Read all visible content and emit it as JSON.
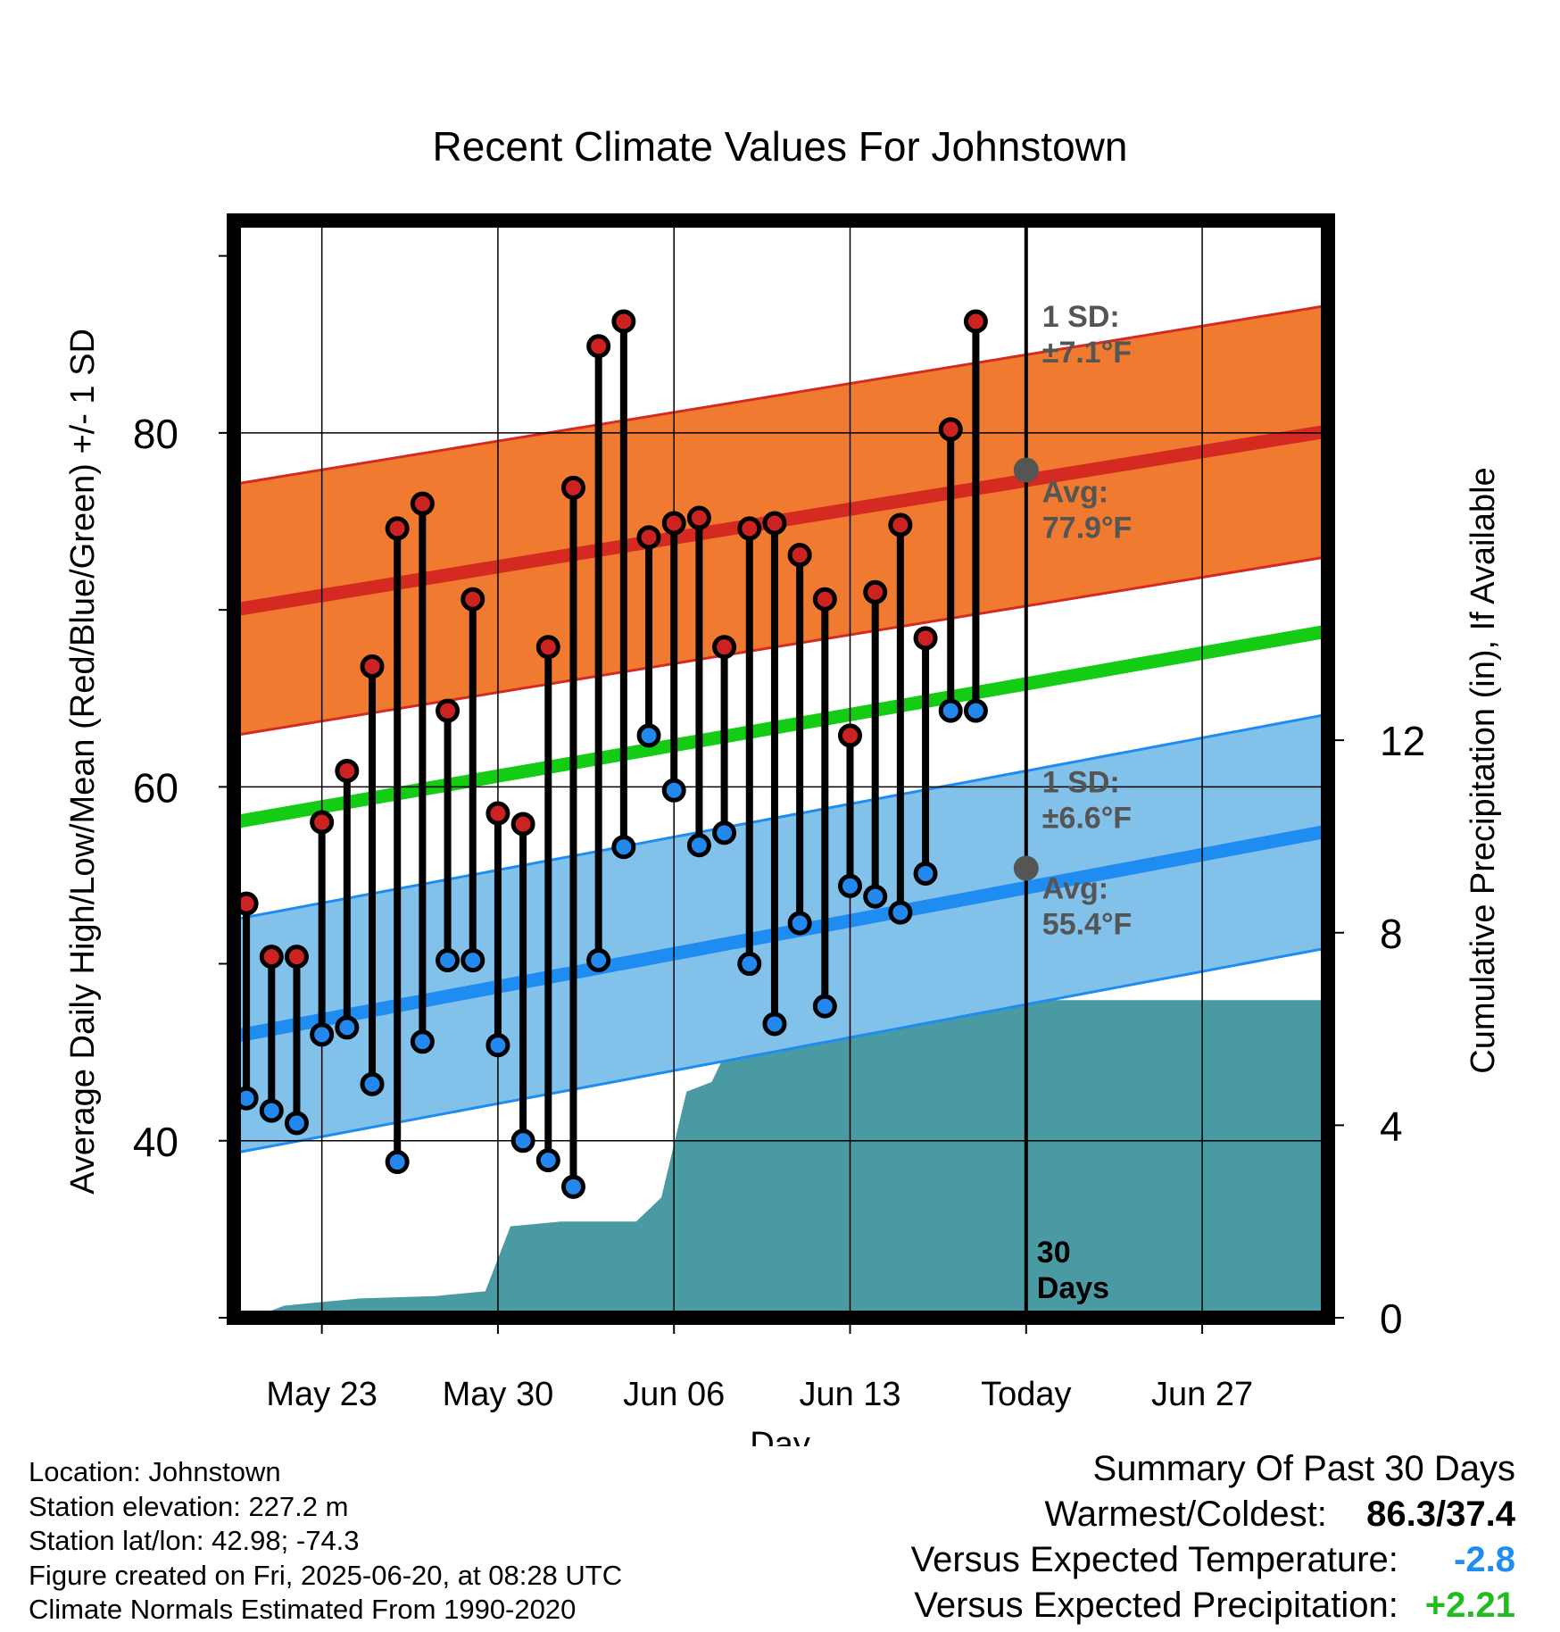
{
  "chart_data": {
    "type": "line",
    "title": "Recent Climate Values For Johnstown",
    "xlabel": "Day",
    "ylabel": "Average Daily High/Low/Mean (Red/Blue/Green) +/- 1 SD",
    "y2label": "Cumulative Precipitation (in), If Available",
    "ylim": [
      30,
      92
    ],
    "y2lim": [
      0,
      22.8
    ],
    "x_range_days": [
      -29.5,
      14.0
    ],
    "x_ticks": [
      {
        "day": -26,
        "label": "May 23"
      },
      {
        "day": -19,
        "label": "May 30"
      },
      {
        "day": -12,
        "label": "Jun 06"
      },
      {
        "day": -5,
        "label": "Jun 13"
      },
      {
        "day": 2,
        "label": "Today"
      },
      {
        "day": 9,
        "label": "Jun 27"
      }
    ],
    "y_ticks_labeled": [
      40,
      60,
      80
    ],
    "y_ticks_minor": [
      30,
      50,
      70,
      90
    ],
    "y2_ticks": [
      0,
      4,
      8,
      12
    ],
    "today_day": 2,
    "today_label_line1": "30",
    "today_label_line2": "Days",
    "days": [
      -29,
      -28,
      -27,
      -26,
      -25,
      -24,
      -23,
      -22,
      -21,
      -20,
      -19,
      -18,
      -17,
      -16,
      -15,
      -14,
      -13,
      -12,
      -11,
      -10,
      -9,
      -8,
      -7,
      -6,
      -5,
      -4,
      -3,
      -2,
      -1,
      0,
      1
    ],
    "highs": [
      53.4,
      50.4,
      50.4,
      58.0,
      60.9,
      66.8,
      74.6,
      76.0,
      64.3,
      70.6,
      58.5,
      57.9,
      67.9,
      76.9,
      84.9,
      86.3,
      74.1,
      74.9,
      75.2,
      67.9,
      74.6,
      74.9,
      73.1,
      70.6,
      62.9,
      71.0,
      74.8,
      68.4,
      80.2,
      86.3,
      null
    ],
    "lows": [
      42.4,
      41.7,
      41.0,
      46.0,
      46.4,
      43.2,
      38.8,
      45.6,
      50.2,
      50.2,
      45.4,
      40.0,
      38.9,
      37.4,
      50.2,
      56.6,
      62.9,
      59.8,
      56.7,
      57.4,
      50.0,
      46.6,
      52.3,
      47.6,
      54.4,
      53.8,
      52.9,
      55.1,
      64.3,
      64.3,
      null
    ],
    "normal_high": {
      "start": 70.0,
      "end": 80.1,
      "sd": 7.1
    },
    "normal_low": {
      "start": 45.9,
      "end": 57.5,
      "sd": 6.6
    },
    "normal_mean": {
      "start": 58.0,
      "end": 68.8
    },
    "cum_precip": [
      [
        -29.5,
        0
      ],
      [
        -28.5,
        0.05
      ],
      [
        -27.5,
        0.25
      ],
      [
        -26.5,
        0.3
      ],
      [
        -24.5,
        0.4
      ],
      [
        -21.5,
        0.45
      ],
      [
        -19.5,
        0.55
      ],
      [
        -18.5,
        1.9
      ],
      [
        -16.5,
        2.0
      ],
      [
        -13.5,
        2.0
      ],
      [
        -12.5,
        2.5
      ],
      [
        -11.5,
        4.7
      ],
      [
        -10.5,
        4.9
      ],
      [
        -9.5,
        6.0
      ],
      [
        -8.5,
        6.2
      ],
      [
        -5.5,
        6.2
      ],
      [
        -4.5,
        6.22
      ],
      [
        -2.5,
        6.26
      ],
      [
        -0.5,
        6.35
      ],
      [
        0.5,
        6.6
      ],
      [
        14.0,
        6.6
      ]
    ],
    "annotations": {
      "high_sd": "1 SD:\n±7.1°F",
      "high_avg": "Avg:\n77.9°F",
      "low_sd": "1 SD:\n±6.6°F",
      "low_avg": "Avg:\n55.4°F",
      "high_avg_value": 77.9,
      "low_avg_value": 55.4
    },
    "colors": {
      "high_band": "#f07a30",
      "high_line": "#d42a22",
      "low_band": "#82c1ea",
      "low_line": "#1e8cf0",
      "mean_line": "#14cc14",
      "precip": "#4a9aa4",
      "high_dot": "#cc2222",
      "low_dot": "#2288ee",
      "annotation": "#555555"
    },
    "grid": true
  },
  "footer": {
    "location": "Location: Johnstown",
    "elevation": "Station elevation: 227.2 m",
    "latlon": "Station lat/lon: 42.98; -74.3",
    "created": "Figure created on Fri, 2025-06-20, at 08:28 UTC",
    "normals": "Climate Normals Estimated From 1990-2020"
  },
  "summary": {
    "title": "Summary Of Past 30 Days",
    "warm_label": "Warmest/Coldest:",
    "warm_value": "86.3/37.4",
    "temp_label": "Versus Expected Temperature:",
    "temp_value": "-2.8",
    "temp_color": "#1e8cf0",
    "precip_label": "Versus Expected Precipitation:",
    "precip_value": "+2.21",
    "precip_color": "#22bb22"
  }
}
